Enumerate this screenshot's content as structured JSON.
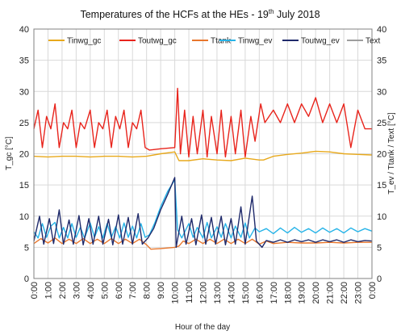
{
  "chart_data": {
    "type": "line",
    "title": "Temperatures of the HCFs at the HEs - 19",
    "title_sup": "th",
    "title_tail": " July 2018",
    "xlabel": "Hour of the day",
    "ylabel_left": "T_gc [°C]",
    "ylabel_right": "T_ev / Ttank / Text  [°C]",
    "x_ticks": [
      "0:00",
      "1:00",
      "2:00",
      "3:00",
      "4:00",
      "5:00",
      "6:00",
      "7:00",
      "8:00",
      "9:00",
      "10:00",
      "11:00",
      "12:00",
      "13:00",
      "14:00",
      "15:00",
      "16:00",
      "17:00",
      "18:00",
      "19:00",
      "20:00",
      "21:00",
      "22:00",
      "23:00",
      "0:00"
    ],
    "x_range_hours": [
      0,
      24
    ],
    "ylim_left": [
      0,
      40
    ],
    "ylim_right": [
      0,
      40
    ],
    "y_ticks": [
      "0",
      "5",
      "10",
      "15",
      "20",
      "25",
      "30",
      "35",
      "40"
    ],
    "grid": true,
    "legend_position": "top",
    "series": [
      {
        "name": "Tinwg_gc",
        "color": "#e8a91c",
        "axis": "left",
        "points": [
          [
            0,
            19.6
          ],
          [
            1,
            19.5
          ],
          [
            2,
            19.6
          ],
          [
            3,
            19.6
          ],
          [
            4,
            19.5
          ],
          [
            5,
            19.6
          ],
          [
            6,
            19.6
          ],
          [
            7,
            19.5
          ],
          [
            8,
            19.6
          ],
          [
            9,
            20.0
          ],
          [
            10,
            20.3
          ],
          [
            10.3,
            18.9
          ],
          [
            11,
            18.9
          ],
          [
            12,
            19.2
          ],
          [
            13,
            19.0
          ],
          [
            14,
            18.9
          ],
          [
            15,
            19.3
          ],
          [
            16,
            19.0
          ],
          [
            16.3,
            19.0
          ],
          [
            17,
            19.6
          ],
          [
            18,
            19.9
          ],
          [
            19,
            20.1
          ],
          [
            20,
            20.4
          ],
          [
            21,
            20.3
          ],
          [
            22,
            20.0
          ],
          [
            23,
            19.9
          ],
          [
            24,
            19.8
          ]
        ]
      },
      {
        "name": "Toutwg_gc",
        "color": "#e8241c",
        "axis": "left",
        "points": [
          [
            0,
            24
          ],
          [
            0.3,
            27
          ],
          [
            0.6,
            21
          ],
          [
            0.9,
            26
          ],
          [
            1.2,
            24
          ],
          [
            1.5,
            28
          ],
          [
            1.8,
            21
          ],
          [
            2.1,
            25
          ],
          [
            2.4,
            24
          ],
          [
            2.7,
            27
          ],
          [
            3,
            21
          ],
          [
            3.3,
            25
          ],
          [
            3.6,
            24
          ],
          [
            4,
            27
          ],
          [
            4.3,
            21
          ],
          [
            4.6,
            25
          ],
          [
            4.9,
            24
          ],
          [
            5.2,
            27
          ],
          [
            5.5,
            21
          ],
          [
            5.8,
            26
          ],
          [
            6.1,
            24
          ],
          [
            6.4,
            27
          ],
          [
            6.7,
            21
          ],
          [
            7,
            25
          ],
          [
            7.3,
            24
          ],
          [
            7.6,
            27
          ],
          [
            7.9,
            21
          ],
          [
            8.2,
            20.6
          ],
          [
            9,
            20.8
          ],
          [
            10,
            21.0
          ],
          [
            10.2,
            30.5
          ],
          [
            10.4,
            20
          ],
          [
            10.7,
            27
          ],
          [
            11,
            19.5
          ],
          [
            11.3,
            26
          ],
          [
            11.6,
            20
          ],
          [
            12,
            27
          ],
          [
            12.3,
            19.5
          ],
          [
            12.6,
            26
          ],
          [
            13,
            20
          ],
          [
            13.3,
            27
          ],
          [
            13.6,
            19.5
          ],
          [
            14,
            26
          ],
          [
            14.3,
            20
          ],
          [
            14.7,
            27
          ],
          [
            15,
            19.5
          ],
          [
            15.4,
            26
          ],
          [
            15.7,
            22
          ],
          [
            16.1,
            28
          ],
          [
            16.4,
            25
          ],
          [
            17,
            27
          ],
          [
            17.5,
            25
          ],
          [
            18,
            28
          ],
          [
            18.5,
            25
          ],
          [
            19,
            28
          ],
          [
            19.5,
            26
          ],
          [
            20,
            29
          ],
          [
            20.5,
            25
          ],
          [
            21,
            28
          ],
          [
            21.5,
            25
          ],
          [
            22,
            28
          ],
          [
            22.5,
            21
          ],
          [
            23,
            27
          ],
          [
            23.5,
            24
          ],
          [
            24,
            24
          ]
        ]
      },
      {
        "name": "Ttank",
        "color": "#e8762c",
        "axis": "right",
        "points": [
          [
            0,
            5.6
          ],
          [
            0.5,
            6.4
          ],
          [
            1,
            5.7
          ],
          [
            1.5,
            6.5
          ],
          [
            2,
            5.6
          ],
          [
            2.5,
            6.3
          ],
          [
            3,
            5.6
          ],
          [
            3.5,
            6.4
          ],
          [
            4,
            5.6
          ],
          [
            4.5,
            6.3
          ],
          [
            5,
            5.6
          ],
          [
            5.5,
            6.4
          ],
          [
            6,
            5.6
          ],
          [
            6.5,
            6.3
          ],
          [
            7,
            5.6
          ],
          [
            7.5,
            6.3
          ],
          [
            8,
            5.4
          ],
          [
            8.3,
            4.7
          ],
          [
            9,
            4.8
          ],
          [
            10,
            5.0
          ],
          [
            10.3,
            5.2
          ],
          [
            10.6,
            6.0
          ],
          [
            11,
            5.6
          ],
          [
            11.5,
            6.3
          ],
          [
            12,
            5.6
          ],
          [
            12.5,
            6.3
          ],
          [
            13,
            5.6
          ],
          [
            13.5,
            6.3
          ],
          [
            14,
            5.6
          ],
          [
            14.5,
            6.3
          ],
          [
            15,
            5.6
          ],
          [
            15.5,
            6.3
          ],
          [
            16,
            5.5
          ],
          [
            16.5,
            6.0
          ],
          [
            17,
            5.6
          ],
          [
            18,
            5.8
          ],
          [
            19,
            5.7
          ],
          [
            20,
            5.7
          ],
          [
            21,
            5.8
          ],
          [
            22,
            5.7
          ],
          [
            23,
            5.8
          ],
          [
            24,
            5.8
          ]
        ]
      },
      {
        "name": "Tinwg_ev",
        "color": "#27b4e8",
        "axis": "right",
        "points": [
          [
            0,
            7.5
          ],
          [
            0.3,
            6.5
          ],
          [
            0.6,
            8.8
          ],
          [
            0.9,
            6.6
          ],
          [
            1.2,
            8.4
          ],
          [
            1.5,
            9.0
          ],
          [
            1.8,
            6.5
          ],
          [
            2.1,
            8.2
          ],
          [
            2.4,
            6.5
          ],
          [
            2.7,
            8.8
          ],
          [
            3,
            6.6
          ],
          [
            3.3,
            8.2
          ],
          [
            3.6,
            6.5
          ],
          [
            4,
            8.9
          ],
          [
            4.3,
            6.6
          ],
          [
            4.6,
            8.3
          ],
          [
            4.9,
            6.5
          ],
          [
            5.2,
            8.8
          ],
          [
            5.5,
            6.6
          ],
          [
            5.8,
            8.3
          ],
          [
            6.1,
            6.5
          ],
          [
            6.4,
            8.9
          ],
          [
            6.7,
            6.6
          ],
          [
            7,
            8.4
          ],
          [
            7.3,
            6.5
          ],
          [
            7.6,
            8.8
          ],
          [
            7.9,
            6.6
          ],
          [
            8.2,
            7.0
          ],
          [
            8.6,
            9.0
          ],
          [
            9,
            11.5
          ],
          [
            9.5,
            14.0
          ],
          [
            10,
            15.8
          ],
          [
            10.2,
            7.8
          ],
          [
            10.5,
            6.5
          ],
          [
            11,
            8.8
          ],
          [
            11.3,
            6.6
          ],
          [
            11.6,
            8.2
          ],
          [
            12,
            6.5
          ],
          [
            12.3,
            9.0
          ],
          [
            12.6,
            6.5
          ],
          [
            13,
            8.3
          ],
          [
            13.3,
            6.6
          ],
          [
            13.6,
            8.8
          ],
          [
            14,
            6.5
          ],
          [
            14.3,
            8.4
          ],
          [
            14.7,
            6.6
          ],
          [
            15,
            8.9
          ],
          [
            15.3,
            6.5
          ],
          [
            15.7,
            8.1
          ],
          [
            16,
            7.5
          ],
          [
            16.5,
            8.0
          ],
          [
            17,
            7.2
          ],
          [
            17.5,
            8.1
          ],
          [
            18,
            7.3
          ],
          [
            18.5,
            8.2
          ],
          [
            19,
            7.4
          ],
          [
            19.5,
            8.0
          ],
          [
            20,
            7.3
          ],
          [
            20.5,
            8.1
          ],
          [
            21,
            7.4
          ],
          [
            21.5,
            8.0
          ],
          [
            22,
            7.3
          ],
          [
            22.5,
            8.1
          ],
          [
            23,
            7.5
          ],
          [
            23.5,
            8.0
          ],
          [
            24,
            7.6
          ]
        ]
      },
      {
        "name": "Toutwg_ev",
        "color": "#1f2a6b",
        "axis": "right",
        "points": [
          [
            0,
            6.0
          ],
          [
            0.4,
            10.0
          ],
          [
            0.7,
            5.5
          ],
          [
            1.1,
            9.6
          ],
          [
            1.4,
            5.6
          ],
          [
            1.8,
            11.0
          ],
          [
            2.1,
            5.5
          ],
          [
            2.5,
            9.4
          ],
          [
            2.8,
            5.5
          ],
          [
            3.2,
            10.1
          ],
          [
            3.5,
            5.4
          ],
          [
            3.9,
            9.6
          ],
          [
            4.2,
            5.5
          ],
          [
            4.6,
            10.0
          ],
          [
            4.9,
            5.5
          ],
          [
            5.3,
            9.5
          ],
          [
            5.6,
            5.4
          ],
          [
            6.0,
            10.2
          ],
          [
            6.3,
            5.5
          ],
          [
            6.7,
            9.8
          ],
          [
            7.0,
            5.5
          ],
          [
            7.4,
            10.4
          ],
          [
            7.7,
            5.5
          ],
          [
            8.1,
            6.5
          ],
          [
            8.5,
            8.0
          ],
          [
            9,
            11.0
          ],
          [
            9.5,
            13.5
          ],
          [
            10,
            16.2
          ],
          [
            10.1,
            5.0
          ],
          [
            10.5,
            10.0
          ],
          [
            10.8,
            5.5
          ],
          [
            11.2,
            9.6
          ],
          [
            11.5,
            5.4
          ],
          [
            11.9,
            10.2
          ],
          [
            12.2,
            5.5
          ],
          [
            12.6,
            9.8
          ],
          [
            12.9,
            5.5
          ],
          [
            13.3,
            10.0
          ],
          [
            13.6,
            5.4
          ],
          [
            14,
            9.6
          ],
          [
            14.3,
            5.5
          ],
          [
            14.7,
            11.5
          ],
          [
            15,
            5.5
          ],
          [
            15.5,
            13.2
          ],
          [
            15.8,
            6.0
          ],
          [
            16.2,
            5.0
          ],
          [
            16.5,
            6.1
          ],
          [
            17,
            5.8
          ],
          [
            17.5,
            6.2
          ],
          [
            18,
            5.8
          ],
          [
            18.5,
            6.2
          ],
          [
            19,
            5.9
          ],
          [
            19.5,
            6.2
          ],
          [
            20,
            5.8
          ],
          [
            20.5,
            6.2
          ],
          [
            21,
            5.9
          ],
          [
            21.5,
            6.2
          ],
          [
            22,
            5.8
          ],
          [
            22.5,
            6.2
          ],
          [
            23,
            5.9
          ],
          [
            23.5,
            6.1
          ],
          [
            24,
            6.0
          ]
        ]
      },
      {
        "name": "Text",
        "color": "#9e9e9e",
        "axis": "right",
        "points": []
      }
    ]
  }
}
